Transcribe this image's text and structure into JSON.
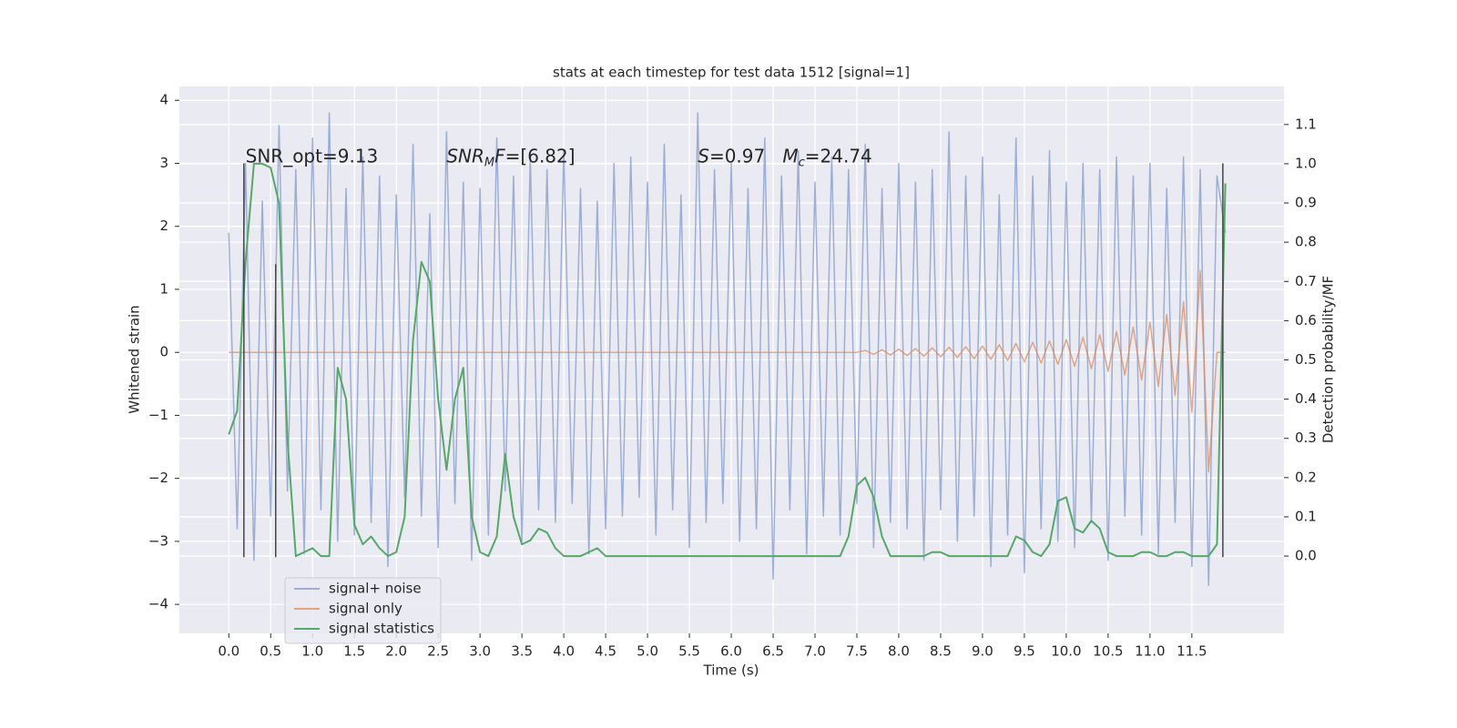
{
  "chart_data": {
    "type": "line",
    "title": "stats at each timestep for test data 1512 [signal=1]",
    "xlabel": "Time (s)",
    "ylabel": "Whitened strain",
    "y2label": "Detection probability/MF",
    "xlim": [
      -0.59,
      12.6
    ],
    "ylim": [
      -4.46,
      4.22
    ],
    "y2lim": [
      -0.197,
      1.197
    ],
    "grid": true,
    "legend": "lower left",
    "xticks": [
      {
        "value": 0,
        "label": "0.0"
      },
      {
        "value": 0.5,
        "label": "0.5"
      },
      {
        "value": 1,
        "label": "1.0"
      },
      {
        "value": 1.5,
        "label": "1.5"
      },
      {
        "value": 2,
        "label": "2.0"
      },
      {
        "value": 2.5,
        "label": "2.5"
      },
      {
        "value": 3,
        "label": "3.0"
      },
      {
        "value": 3.5,
        "label": "3.5"
      },
      {
        "value": 4,
        "label": "4.0"
      },
      {
        "value": 4.5,
        "label": "4.5"
      },
      {
        "value": 5,
        "label": "5.0"
      },
      {
        "value": 5.5,
        "label": "5.5"
      },
      {
        "value": 6,
        "label": "6.0"
      },
      {
        "value": 6.5,
        "label": "6.5"
      },
      {
        "value": 7,
        "label": "7.0"
      },
      {
        "value": 7.5,
        "label": "7.5"
      },
      {
        "value": 8,
        "label": "8.0"
      },
      {
        "value": 8.5,
        "label": "8.5"
      },
      {
        "value": 9,
        "label": "9.0"
      },
      {
        "value": 9.5,
        "label": "9.5"
      },
      {
        "value": 10,
        "label": "10.0"
      },
      {
        "value": 10.5,
        "label": "10.5"
      },
      {
        "value": 11,
        "label": "11.0"
      },
      {
        "value": 11.5,
        "label": "11.5"
      }
    ],
    "yticks": [
      {
        "value": -4,
        "label": "−4"
      },
      {
        "value": -3,
        "label": "−3"
      },
      {
        "value": -2,
        "label": "−2"
      },
      {
        "value": -1,
        "label": "−1"
      },
      0,
      1,
      2,
      3,
      4
    ],
    "y2ticks": [
      {
        "value": 0,
        "label": "0.0"
      },
      {
        "value": 0.1,
        "label": "0.1"
      },
      {
        "value": 0.2,
        "label": "0.2"
      },
      {
        "value": 0.3,
        "label": "0.3"
      },
      {
        "value": 0.4,
        "label": "0.4"
      },
      {
        "value": 0.5,
        "label": "0.5"
      },
      {
        "value": 0.6,
        "label": "0.6"
      },
      {
        "value": 0.7,
        "label": "0.7"
      },
      {
        "value": 0.8,
        "label": "0.8"
      },
      {
        "value": 0.9,
        "label": "0.9"
      },
      {
        "value": 1,
        "label": "1.0"
      },
      {
        "value": 1.1,
        "label": "1.1"
      }
    ],
    "x": [
      0,
      0.1,
      0.2,
      0.3,
      0.4,
      0.5,
      0.6,
      0.7,
      0.8,
      0.9,
      1,
      1.1,
      1.2,
      1.3,
      1.4,
      1.5,
      1.6,
      1.7,
      1.8,
      1.9,
      2,
      2.1,
      2.2,
      2.3,
      2.4,
      2.5,
      2.6,
      2.7,
      2.8,
      2.9,
      3,
      3.1,
      3.2,
      3.3,
      3.4,
      3.5,
      3.6,
      3.7,
      3.8,
      3.9,
      4,
      4.1,
      4.2,
      4.3,
      4.4,
      4.5,
      4.6,
      4.7,
      4.8,
      4.9,
      5,
      5.1,
      5.2,
      5.3,
      5.4,
      5.5,
      5.6,
      5.7,
      5.8,
      5.9,
      6,
      6.1,
      6.2,
      6.3,
      6.4,
      6.5,
      6.6,
      6.7,
      6.8,
      6.9,
      7,
      7.1,
      7.2,
      7.3,
      7.4,
      7.5,
      7.6,
      7.7,
      7.8,
      7.9,
      8,
      8.1,
      8.2,
      8.3,
      8.4,
      8.5,
      8.6,
      8.7,
      8.8,
      8.9,
      9,
      9.1,
      9.2,
      9.3,
      9.4,
      9.5,
      9.6,
      9.7,
      9.8,
      9.9,
      10,
      10.1,
      10.2,
      10.3,
      10.4,
      10.5,
      10.6,
      10.7,
      10.8,
      10.9,
      11,
      11.1,
      11.2,
      11.3,
      11.4,
      11.5,
      11.6,
      11.7,
      11.8,
      11.9
    ],
    "series": [
      {
        "name": "signal+ noise",
        "color": "#8fa3d0",
        "values": [
          1.9,
          -2.8,
          3.0,
          -3.3,
          2.4,
          -2.6,
          3.6,
          -2.2,
          2.9,
          -3.2,
          3.4,
          -2.5,
          3.8,
          -3.0,
          2.6,
          -2.9,
          3.1,
          -2.7,
          2.8,
          -3.4,
          2.5,
          -2.3,
          3.3,
          -2.6,
          2.2,
          -3.1,
          3.5,
          -2.4,
          2.7,
          -3.3,
          2.6,
          -2.9,
          3.4,
          -2.2,
          2.8,
          -3.0,
          3.1,
          -2.5,
          2.9,
          -2.7,
          3.2,
          -2.4,
          2.6,
          -3.2,
          2.4,
          -2.8,
          3.0,
          -2.6,
          3.1,
          -2.3,
          2.7,
          -2.9,
          3.3,
          -2.5,
          2.5,
          -3.1,
          3.8,
          -2.7,
          2.9,
          -2.4,
          3.0,
          -3.0,
          2.6,
          -2.8,
          3.4,
          -3.6,
          2.8,
          -2.5,
          3.2,
          -3.2,
          2.7,
          -2.6,
          3.1,
          -2.9,
          2.9,
          -2.4,
          3.3,
          -3.1,
          2.6,
          -2.7,
          3.0,
          -2.8,
          2.7,
          -3.3,
          2.9,
          -2.5,
          3.5,
          -3.0,
          2.8,
          -2.6,
          3.1,
          -3.4,
          2.5,
          -2.9,
          3.4,
          -3.5,
          2.8,
          -2.8,
          3.2,
          -3.0,
          2.7,
          -3.1,
          3.0,
          -2.7,
          2.9,
          -3.3,
          3.1,
          -2.6,
          2.8,
          -2.9,
          3.0,
          -3.2,
          2.6,
          -2.7,
          3.1,
          -3.4,
          2.9,
          -3.7,
          2.8,
          1.9
        ]
      },
      {
        "name": "signal only",
        "color": "#dd8452",
        "values": [
          0,
          0,
          0,
          0,
          0,
          0,
          0,
          0,
          0,
          0,
          0,
          0,
          0,
          0,
          0,
          0,
          0,
          0,
          0,
          0,
          0,
          0,
          0,
          0,
          0,
          0,
          0,
          0,
          0,
          0,
          0,
          0,
          0,
          0,
          0,
          0,
          0,
          0,
          0,
          0,
          0,
          0,
          0,
          0,
          0,
          0,
          0,
          0,
          0,
          0,
          0,
          0,
          0,
          0,
          0,
          0,
          0,
          0,
          0,
          0,
          0,
          0,
          0,
          0,
          0,
          0,
          0,
          0,
          0,
          0,
          0,
          0,
          0,
          0,
          0,
          0,
          0.03,
          -0.03,
          0.04,
          -0.04,
          0.05,
          -0.05,
          0.06,
          -0.06,
          0.07,
          -0.07,
          0.08,
          -0.08,
          0.09,
          -0.1,
          0.1,
          -0.11,
          0.12,
          -0.13,
          0.14,
          -0.15,
          0.16,
          -0.17,
          0.18,
          -0.19,
          0.2,
          -0.22,
          0.24,
          -0.26,
          0.28,
          -0.3,
          0.33,
          -0.36,
          0.4,
          -0.44,
          0.48,
          -0.54,
          0.6,
          -0.68,
          0.8,
          -0.95,
          1.3,
          -1.9,
          0,
          0
        ]
      },
      {
        "name": "signal statistics",
        "color": "#55a868",
        "axis": "y2",
        "values": [
          0.31,
          0.37,
          0.75,
          1.0,
          1.0,
          0.99,
          0.9,
          0.3,
          0.0,
          0.01,
          0.02,
          0.0,
          0.0,
          0.48,
          0.4,
          0.08,
          0.03,
          0.05,
          0.02,
          0.0,
          0.01,
          0.1,
          0.55,
          0.75,
          0.7,
          0.4,
          0.22,
          0.4,
          0.48,
          0.1,
          0.01,
          0.0,
          0.05,
          0.26,
          0.1,
          0.03,
          0.04,
          0.07,
          0.06,
          0.02,
          0.0,
          0.0,
          0.0,
          0.01,
          0.02,
          0.0,
          0.0,
          0.0,
          0.0,
          0.0,
          0.0,
          0.0,
          0.0,
          0.0,
          0.0,
          0.0,
          0.0,
          0.0,
          0.0,
          0.0,
          0.0,
          0.0,
          0.0,
          0.0,
          0.0,
          0.0,
          0.0,
          0.0,
          0.0,
          0.0,
          0.0,
          0.0,
          0.0,
          0.0,
          0.05,
          0.18,
          0.2,
          0.15,
          0.05,
          0.0,
          0.0,
          0.0,
          0.0,
          0.0,
          0.01,
          0.01,
          0.0,
          0.0,
          0.0,
          0.0,
          0.0,
          0.0,
          0.0,
          0.0,
          0.05,
          0.04,
          0.01,
          0.0,
          0.03,
          0.14,
          0.15,
          0.07,
          0.06,
          0.09,
          0.07,
          0.01,
          0.0,
          0.0,
          0.0,
          0.01,
          0.01,
          0.0,
          0.0,
          0.01,
          0.01,
          0.0,
          0.0,
          0.0,
          0.03,
          0.95
        ]
      }
    ],
    "vlines": [
      {
        "x": 0.18,
        "y": [
          3.0,
          -3.25
        ]
      },
      {
        "x": 0.56,
        "y": [
          1.4,
          -3.25
        ]
      },
      {
        "x": 11.87,
        "y": [
          3.0,
          -3.25
        ]
      }
    ],
    "annotations": [
      {
        "x": 0.2,
        "y": 3.1,
        "parts": [
          {
            "text": "SNR_opt=9.13",
            "style": "normal"
          }
        ]
      },
      {
        "x": 2.6,
        "y": 3.1,
        "parts": [
          {
            "text": "SNR",
            "style": "italic"
          },
          {
            "text": "M",
            "style": "sub"
          },
          {
            "text": "F",
            "style": "italic"
          },
          {
            "text": "=[6.82]",
            "style": "normal"
          }
        ]
      },
      {
        "x": 5.6,
        "y": 3.1,
        "parts": [
          {
            "text": "S",
            "style": "italic"
          },
          {
            "text": "=0.97   ",
            "style": "normal"
          },
          {
            "text": "M",
            "style": "italic"
          },
          {
            "text": "c",
            "style": "sub"
          },
          {
            "text": "=24.74",
            "style": "normal"
          }
        ]
      }
    ]
  }
}
